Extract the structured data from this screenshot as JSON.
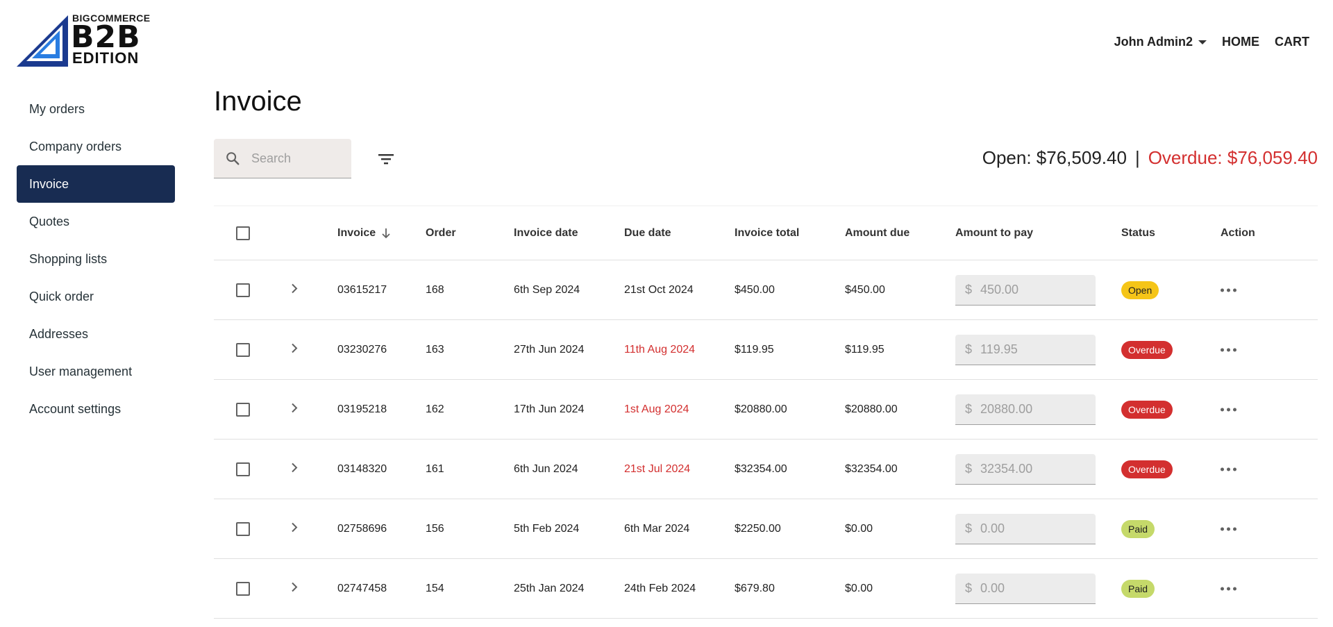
{
  "logo": {
    "top": "BIGCOMMERCE",
    "main": "B2B",
    "sub": "EDITION"
  },
  "topnav": {
    "user": "John Admin2",
    "home": "HOME",
    "cart": "CART"
  },
  "sidebar": {
    "items": [
      {
        "label": "My orders",
        "active": false
      },
      {
        "label": "Company orders",
        "active": false
      },
      {
        "label": "Invoice",
        "active": true
      },
      {
        "label": "Quotes",
        "active": false
      },
      {
        "label": "Shopping lists",
        "active": false
      },
      {
        "label": "Quick order",
        "active": false
      },
      {
        "label": "Addresses",
        "active": false
      },
      {
        "label": "User management",
        "active": false
      },
      {
        "label": "Account settings",
        "active": false
      }
    ]
  },
  "page": {
    "title": "Invoice"
  },
  "search": {
    "placeholder": "Search"
  },
  "summary": {
    "open": "Open: $76,509.40",
    "separator": "|",
    "overdue": "Overdue: $76,059.40"
  },
  "table": {
    "headers": {
      "invoice": "Invoice",
      "order": "Order",
      "invoice_date": "Invoice date",
      "due_date": "Due date",
      "invoice_total": "Invoice total",
      "amount_due": "Amount due",
      "amount_to_pay": "Amount to pay",
      "status": "Status",
      "action": "Action"
    },
    "currency_symbol": "$",
    "rows": [
      {
        "invoice": "03615217",
        "order": "168",
        "invoice_date": "6th Sep 2024",
        "due_date": "21st Oct 2024",
        "due_overdue": false,
        "invoice_total": "$450.00",
        "amount_due": "$450.00",
        "amount_to_pay": "450.00",
        "status": "Open",
        "status_type": "open"
      },
      {
        "invoice": "03230276",
        "order": "163",
        "invoice_date": "27th Jun 2024",
        "due_date": "11th Aug 2024",
        "due_overdue": true,
        "invoice_total": "$119.95",
        "amount_due": "$119.95",
        "amount_to_pay": "119.95",
        "status": "Overdue",
        "status_type": "overdue"
      },
      {
        "invoice": "03195218",
        "order": "162",
        "invoice_date": "17th Jun 2024",
        "due_date": "1st Aug 2024",
        "due_overdue": true,
        "invoice_total": "$20880.00",
        "amount_due": "$20880.00",
        "amount_to_pay": "20880.00",
        "status": "Overdue",
        "status_type": "overdue"
      },
      {
        "invoice": "03148320",
        "order": "161",
        "invoice_date": "6th Jun 2024",
        "due_date": "21st Jul 2024",
        "due_overdue": true,
        "invoice_total": "$32354.00",
        "amount_due": "$32354.00",
        "amount_to_pay": "32354.00",
        "status": "Overdue",
        "status_type": "overdue"
      },
      {
        "invoice": "02758696",
        "order": "156",
        "invoice_date": "5th Feb 2024",
        "due_date": "6th Mar 2024",
        "due_overdue": false,
        "invoice_total": "$2250.00",
        "amount_due": "$0.00",
        "amount_to_pay": "0.00",
        "status": "Paid",
        "status_type": "paid"
      },
      {
        "invoice": "02747458",
        "order": "154",
        "invoice_date": "25th Jan 2024",
        "due_date": "24th Feb 2024",
        "due_overdue": false,
        "invoice_total": "$679.80",
        "amount_due": "$0.00",
        "amount_to_pay": "0.00",
        "status": "Paid",
        "status_type": "paid"
      }
    ]
  },
  "colors": {
    "sidebar_active": "#182c52",
    "overdue": "#d32f2f",
    "badge_open": "#f5c518",
    "badge_paid": "#c5d96a"
  }
}
